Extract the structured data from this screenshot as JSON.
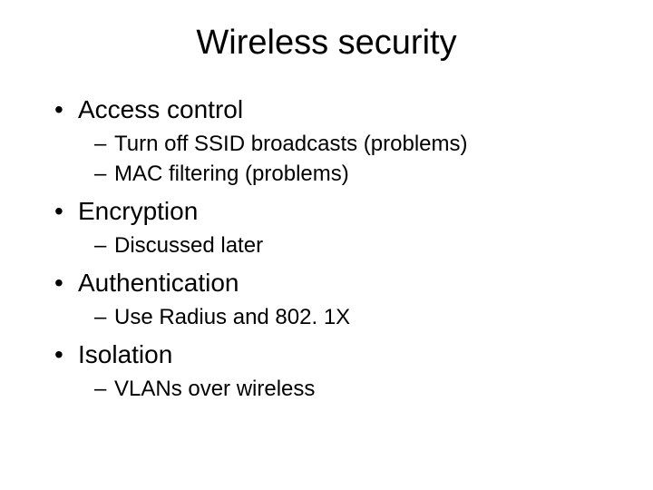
{
  "slide": {
    "title": "Wireless security",
    "title_fontsize": 38,
    "body_font": "Arial",
    "background_color": "#ffffff",
    "text_color": "#000000",
    "bullets": [
      {
        "text": "Access control",
        "fontsize": 28,
        "bullet_char": "•",
        "sub": [
          {
            "text": "Turn off SSID broadcasts (problems)",
            "fontsize": 24,
            "bullet_char": "–"
          },
          {
            "text": "MAC filtering (problems)",
            "fontsize": 24,
            "bullet_char": "–"
          }
        ]
      },
      {
        "text": "Encryption",
        "fontsize": 28,
        "bullet_char": "•",
        "sub": [
          {
            "text": "Discussed later",
            "fontsize": 24,
            "bullet_char": "–"
          }
        ]
      },
      {
        "text": "Authentication",
        "fontsize": 28,
        "bullet_char": "•",
        "sub": [
          {
            "text": "Use Radius and 802. 1X",
            "fontsize": 24,
            "bullet_char": "–"
          }
        ]
      },
      {
        "text": "Isolation",
        "fontsize": 28,
        "bullet_char": "•",
        "sub": [
          {
            "text": "VLANs over wireless",
            "fontsize": 24,
            "bullet_char": "–"
          }
        ]
      }
    ]
  }
}
